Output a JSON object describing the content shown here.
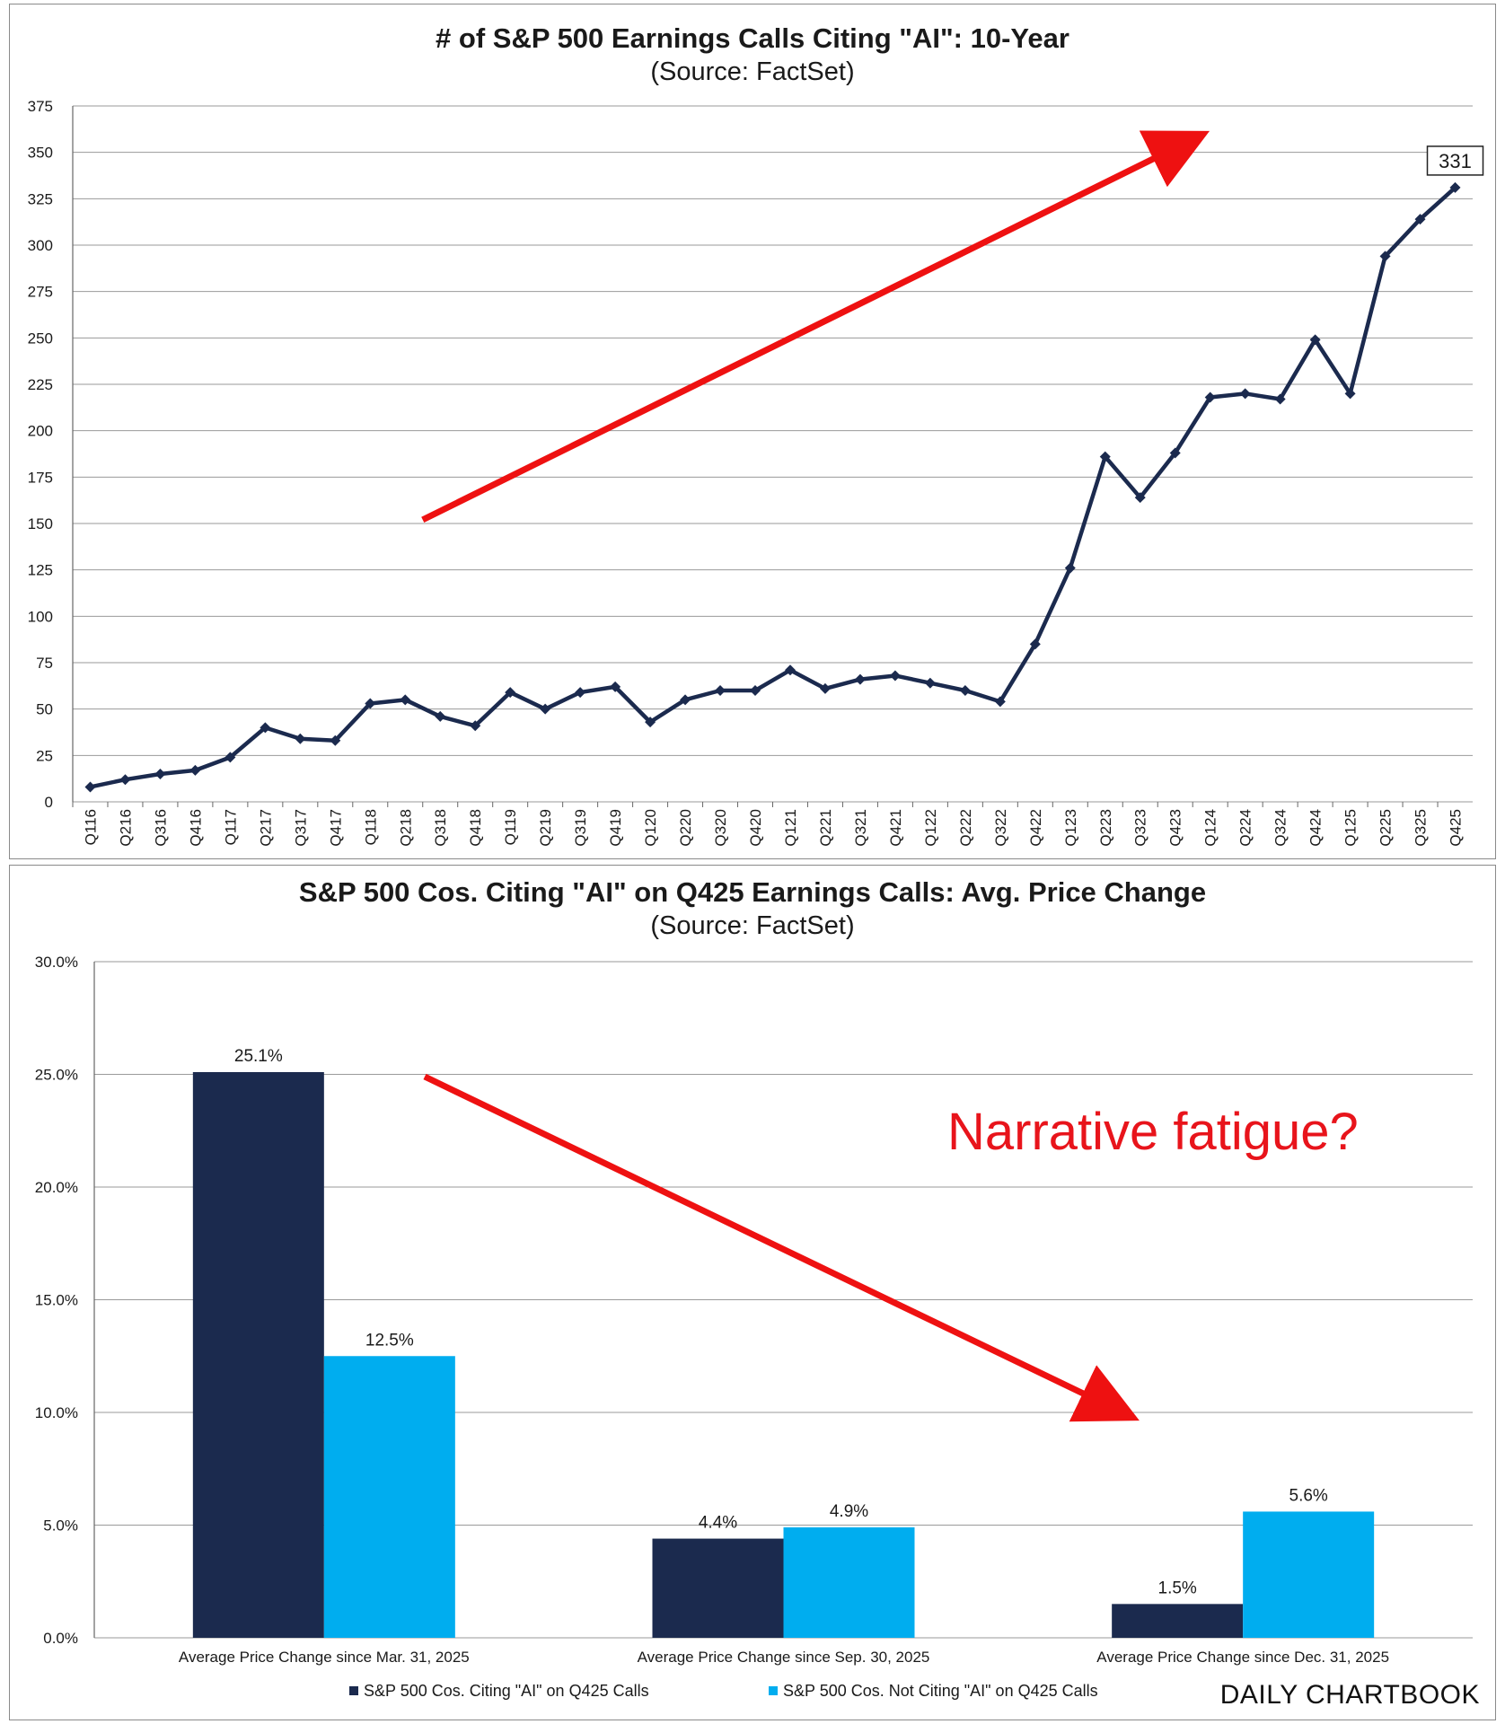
{
  "colors": {
    "line": "#1b2a4e",
    "ai_bar": "#1b2a4e",
    "non_ai_bar": "#00adef",
    "arrow": "#ee1111",
    "grid": "#9a9a9a"
  },
  "chart_data": [
    {
      "type": "line",
      "title": "# of S&P 500 Earnings Calls Citing \"AI\": 10-Year",
      "subtitle": "(Source: FactSet)",
      "x": [
        "Q116",
        "Q216",
        "Q316",
        "Q416",
        "Q117",
        "Q217",
        "Q317",
        "Q417",
        "Q118",
        "Q218",
        "Q318",
        "Q418",
        "Q119",
        "Q219",
        "Q319",
        "Q419",
        "Q120",
        "Q220",
        "Q320",
        "Q420",
        "Q121",
        "Q221",
        "Q321",
        "Q421",
        "Q122",
        "Q222",
        "Q322",
        "Q422",
        "Q123",
        "Q223",
        "Q323",
        "Q423",
        "Q124",
        "Q224",
        "Q324",
        "Q424",
        "Q125",
        "Q225",
        "Q325",
        "Q425"
      ],
      "series": [
        {
          "values": [
            8,
            12,
            15,
            17,
            24,
            40,
            34,
            33,
            53,
            55,
            46,
            41,
            59,
            50,
            59,
            62,
            43,
            55,
            60,
            60,
            71,
            61,
            66,
            68,
            64,
            60,
            54,
            85,
            126,
            186,
            164,
            188,
            218,
            220,
            217,
            249,
            220,
            294,
            314,
            331
          ]
        }
      ],
      "ylim": [
        0,
        375
      ],
      "yticks": [
        "0",
        "25",
        "50",
        "75",
        "100",
        "125",
        "150",
        "175",
        "200",
        "225",
        "250",
        "275",
        "300",
        "325",
        "350",
        "375"
      ],
      "grid": true,
      "callout": "331",
      "annotation": "upward red arrow"
    },
    {
      "type": "bar",
      "title": "S&P 500 Cos. Citing \"AI\" on Q425 Earnings Calls: Avg. Price Change",
      "subtitle": "(Source: FactSet)",
      "categories": [
        "Average Price Change since Mar. 31, 2025",
        "Average Price Change since Sep. 30, 2025",
        "Average Price Change since Dec. 31, 2025"
      ],
      "series": [
        {
          "name": "S&P 500 Cos. Citing \"AI\" on Q425 Calls",
          "values": [
            25.1,
            4.4,
            1.5
          ],
          "labels": [
            "25.1%",
            "4.4%",
            "1.5%"
          ]
        },
        {
          "name": "S&P 500 Cos. Not Citing \"AI\" on Q425 Calls",
          "values": [
            12.5,
            4.9,
            5.6
          ],
          "labels": [
            "12.5%",
            "4.9%",
            "5.6%"
          ]
        }
      ],
      "ylim": [
        0,
        30
      ],
      "yticks": [
        "0.0%",
        "5.0%",
        "10.0%",
        "15.0%",
        "20.0%",
        "25.0%",
        "30.0%"
      ],
      "grid": true,
      "legend": "bottom",
      "annotation_text": "Narrative fatigue?"
    }
  ],
  "branding": "DAILY CHARTBOOK"
}
